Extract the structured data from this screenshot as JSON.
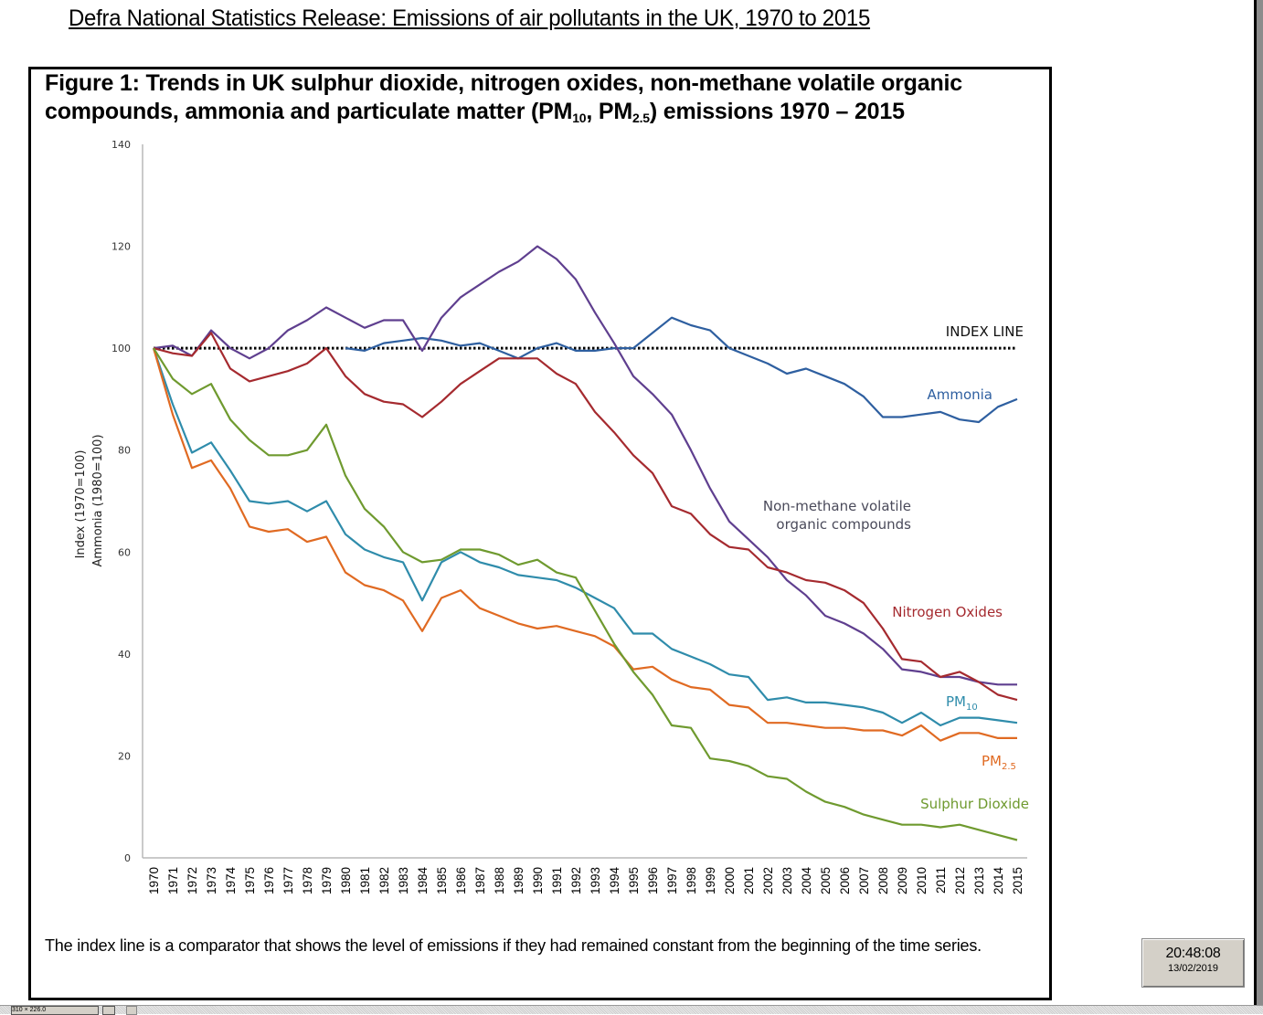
{
  "page": {
    "release_title": "Defra National Statistics Release: Emissions of air pollutants in the UK, 1970 to 2015",
    "figure_title_line1": "Figure 1: Trends in UK sulphur dioxide, nitrogen oxides, non-methane volatile organic",
    "figure_title_line2_a": "compounds, ammonia and particulate matter (PM",
    "figure_title_sub1": "10",
    "figure_title_line2_b": ", PM",
    "figure_title_sub2": "2.5",
    "figure_title_line2_c": ") emissions 1970 – 2015",
    "footnote": "The index line is a comparator that shows the level of emissions if they had remained constant from the beginning of the time series.",
    "clock_time": "20:48:08",
    "clock_date": "13/02/2019",
    "status_field": "310 × 226.0"
  },
  "chart_data": {
    "type": "line",
    "title": "Figure 1: Trends in UK sulphur dioxide, nitrogen oxides, non-methane volatile organic compounds, ammonia and particulate matter (PM10, PM2.5) emissions 1970 – 2015",
    "xlabel": "",
    "ylabel_line1": "Index (1970=100)",
    "ylabel_line2": "Ammonia (1980=100)",
    "ylim": [
      0,
      140
    ],
    "yticks": [
      0,
      20,
      40,
      60,
      80,
      100,
      120,
      140
    ],
    "grid": false,
    "legend": "inline labels at line ends (right)",
    "x": [
      1970,
      1971,
      1972,
      1973,
      1974,
      1975,
      1976,
      1977,
      1978,
      1979,
      1980,
      1981,
      1982,
      1983,
      1984,
      1985,
      1986,
      1987,
      1988,
      1989,
      1990,
      1991,
      1992,
      1993,
      1994,
      1995,
      1996,
      1997,
      1998,
      1999,
      2000,
      2001,
      2002,
      2003,
      2004,
      2005,
      2006,
      2007,
      2008,
      2009,
      2010,
      2011,
      2012,
      2013,
      2014,
      2015
    ],
    "index_line": {
      "label": "INDEX LINE",
      "value": 100,
      "color": "#000000"
    },
    "series": [
      {
        "name": "Ammonia",
        "label_lines": [
          "Ammonia"
        ],
        "color": "#2e5fa0",
        "start_year": 1980,
        "values": [
          100,
          99.5,
          101,
          101.5,
          102,
          101.5,
          100.5,
          101,
          99.5,
          98,
          100,
          101,
          99.5,
          99.5,
          100,
          100,
          103,
          106,
          104.5,
          103.5,
          100,
          98.5,
          97,
          95,
          96,
          94.5,
          93,
          90.5,
          86.5,
          86.5,
          87,
          87.5,
          86,
          85.5,
          88.5,
          90
        ]
      },
      {
        "name": "Non-methane volatile organic compounds",
        "label_lines": [
          "Non-methane volatile",
          "organic compounds"
        ],
        "color": "#5f3f8f",
        "start_year": 1970,
        "values": [
          100,
          100.5,
          98.5,
          103.5,
          100,
          98,
          100,
          103.5,
          105.5,
          108,
          106,
          104,
          105.5,
          105.5,
          99.5,
          106,
          110,
          112.5,
          115,
          117,
          120,
          117.5,
          113.5,
          107,
          101,
          94.5,
          91,
          87,
          80,
          72.5,
          66,
          62.5,
          59,
          54.5,
          51.5,
          47.5,
          46,
          44,
          41,
          37,
          36.5,
          35.5,
          35.5,
          34.5,
          34,
          34
        ]
      },
      {
        "name": "Nitrogen Oxides",
        "label_lines": [
          "Nitrogen Oxides"
        ],
        "color": "#a52a2f",
        "start_year": 1970,
        "values": [
          100,
          99,
          98.5,
          103,
          96,
          93.5,
          94.5,
          95.5,
          97,
          100,
          94.5,
          91,
          89.5,
          89,
          86.5,
          89.5,
          93,
          95.5,
          98,
          98,
          98,
          95,
          93,
          87.5,
          83.5,
          79,
          75.5,
          69,
          67.5,
          63.5,
          61,
          60.5,
          57,
          56,
          54.5,
          54,
          52.5,
          50,
          45,
          39,
          38.5,
          35.5,
          36.5,
          34.5,
          32,
          31
        ]
      },
      {
        "name": "PM10",
        "label_lines": [
          "PM",
          "10"
        ],
        "color": "#2f8cab",
        "start_year": 1970,
        "values": [
          100,
          89,
          79.5,
          81.5,
          76,
          70,
          69.5,
          70,
          68,
          70,
          63.5,
          60.5,
          59,
          58,
          50.5,
          58,
          60,
          58,
          57,
          55.5,
          55,
          54.5,
          53,
          51,
          49,
          44,
          44,
          41,
          39.5,
          38,
          36,
          35.5,
          31,
          31.5,
          30.5,
          30.5,
          30,
          29.5,
          28.5,
          26.5,
          28.5,
          26,
          27.5,
          27.5,
          27,
          26.5
        ]
      },
      {
        "name": "PM2.5",
        "label_lines": [
          "PM",
          "2.5"
        ],
        "color": "#e06a22",
        "start_year": 1970,
        "values": [
          100,
          87,
          76.5,
          78,
          72.5,
          65,
          64,
          64.5,
          62,
          63,
          56,
          53.5,
          52.5,
          50.5,
          44.5,
          51,
          52.5,
          49,
          47.5,
          46,
          45,
          45.5,
          44.5,
          43.5,
          41.5,
          37,
          37.5,
          35,
          33.5,
          33,
          30,
          29.5,
          26.5,
          26.5,
          26,
          25.5,
          25.5,
          25,
          25,
          24,
          26,
          23,
          24.5,
          24.5,
          23.5,
          23.5
        ]
      },
      {
        "name": "Sulphur Dioxide",
        "label_lines": [
          "Sulphur Dioxide"
        ],
        "color": "#6f9a2f",
        "start_year": 1970,
        "values": [
          100,
          94,
          91,
          93,
          86,
          82,
          79,
          79,
          80,
          85,
          75,
          68.5,
          65,
          60,
          58,
          58.5,
          60.5,
          60.5,
          59.5,
          57.5,
          58.5,
          56,
          55,
          48.5,
          42,
          36.5,
          32,
          26,
          25.5,
          19.5,
          19,
          18,
          16,
          15.5,
          13,
          11,
          10,
          8.5,
          7.5,
          6.5,
          6.5,
          6,
          6.5,
          5.5,
          4.5,
          3.5
        ]
      }
    ]
  }
}
